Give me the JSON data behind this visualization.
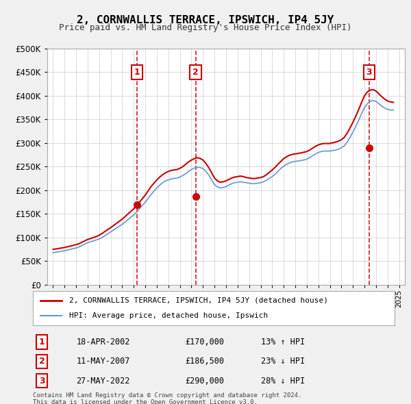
{
  "title": "2, CORNWALLIS TERRACE, IPSWICH, IP4 5JY",
  "subtitle": "Price paid vs. HM Land Registry's House Price Index (HPI)",
  "legend_line1": "2, CORNWALLIS TERRACE, IPSWICH, IP4 5JY (detached house)",
  "legend_line2": "HPI: Average price, detached house, Ipswich",
  "footer1": "Contains HM Land Registry data © Crown copyright and database right 2024.",
  "footer2": "This data is licensed under the Open Government Licence v3.0.",
  "transactions": [
    {
      "num": 1,
      "date": "18-APR-2002",
      "price": 170000,
      "pct": "13%",
      "dir": "↑",
      "x": 2002.29
    },
    {
      "num": 2,
      "date": "11-MAY-2007",
      "price": 186500,
      "pct": "23%",
      "dir": "↓",
      "x": 2007.36
    },
    {
      "num": 3,
      "date": "27-MAY-2022",
      "price": 290000,
      "pct": "28%",
      "dir": "↓",
      "x": 2022.41
    }
  ],
  "hpi_x": [
    1995,
    1995.25,
    1995.5,
    1995.75,
    1996,
    1996.25,
    1996.5,
    1996.75,
    1997,
    1997.25,
    1997.5,
    1997.75,
    1998,
    1998.25,
    1998.5,
    1998.75,
    1999,
    1999.25,
    1999.5,
    1999.75,
    2000,
    2000.25,
    2000.5,
    2000.75,
    2001,
    2001.25,
    2001.5,
    2001.75,
    2002,
    2002.25,
    2002.5,
    2002.75,
    2003,
    2003.25,
    2003.5,
    2003.75,
    2004,
    2004.25,
    2004.5,
    2004.75,
    2005,
    2005.25,
    2005.5,
    2005.75,
    2006,
    2006.25,
    2006.5,
    2006.75,
    2007,
    2007.25,
    2007.5,
    2007.75,
    2008,
    2008.25,
    2008.5,
    2008.75,
    2009,
    2009.25,
    2009.5,
    2009.75,
    2010,
    2010.25,
    2010.5,
    2010.75,
    2011,
    2011.25,
    2011.5,
    2011.75,
    2012,
    2012.25,
    2012.5,
    2012.75,
    2013,
    2013.25,
    2013.5,
    2013.75,
    2014,
    2014.25,
    2014.5,
    2014.75,
    2015,
    2015.25,
    2015.5,
    2015.75,
    2016,
    2016.25,
    2016.5,
    2016.75,
    2017,
    2017.25,
    2017.5,
    2017.75,
    2018,
    2018.25,
    2018.5,
    2018.75,
    2019,
    2019.25,
    2019.5,
    2019.75,
    2020,
    2020.25,
    2020.5,
    2020.75,
    2021,
    2021.25,
    2021.5,
    2021.75,
    2022,
    2022.25,
    2022.5,
    2022.75,
    2023,
    2023.25,
    2023.5,
    2023.75,
    2024,
    2024.25,
    2024.5
  ],
  "hpi_y": [
    68000,
    69000,
    70000,
    71000,
    72000,
    73500,
    75000,
    76500,
    78000,
    80000,
    83000,
    86000,
    89000,
    91000,
    93000,
    95000,
    97000,
    100000,
    104000,
    108000,
    112000,
    116000,
    120000,
    124000,
    128000,
    133000,
    138000,
    143000,
    148000,
    154000,
    161000,
    168000,
    175000,
    183000,
    191000,
    198000,
    205000,
    211000,
    216000,
    220000,
    222000,
    224000,
    225000,
    226000,
    228000,
    231000,
    235000,
    240000,
    244000,
    247000,
    249000,
    248000,
    246000,
    240000,
    232000,
    222000,
    212000,
    207000,
    205000,
    206000,
    208000,
    211000,
    214000,
    216000,
    217000,
    218000,
    217000,
    216000,
    215000,
    214000,
    214000,
    215000,
    216000,
    218000,
    221000,
    225000,
    229000,
    234000,
    240000,
    246000,
    251000,
    255000,
    258000,
    260000,
    261000,
    262000,
    263000,
    264000,
    266000,
    269000,
    273000,
    277000,
    280000,
    282000,
    283000,
    283000,
    283000,
    284000,
    285000,
    287000,
    290000,
    294000,
    302000,
    312000,
    323000,
    335000,
    348000,
    362000,
    375000,
    383000,
    388000,
    390000,
    388000,
    383000,
    378000,
    374000,
    371000,
    370000,
    370000
  ],
  "red_x": [
    1995,
    1995.25,
    1995.5,
    1995.75,
    1996,
    1996.25,
    1996.5,
    1996.75,
    1997,
    1997.25,
    1997.5,
    1997.75,
    1998,
    1998.25,
    1998.5,
    1998.75,
    1999,
    1999.25,
    1999.5,
    1999.75,
    2000,
    2000.25,
    2000.5,
    2000.75,
    2001,
    2001.25,
    2001.5,
    2001.75,
    2002,
    2002.25,
    2002.5,
    2002.75,
    2003,
    2003.25,
    2003.5,
    2003.75,
    2004,
    2004.25,
    2004.5,
    2004.75,
    2005,
    2005.25,
    2005.5,
    2005.75,
    2006,
    2006.25,
    2006.5,
    2006.75,
    2007,
    2007.25,
    2007.5,
    2007.75,
    2008,
    2008.25,
    2008.5,
    2008.75,
    2009,
    2009.25,
    2009.5,
    2009.75,
    2010,
    2010.25,
    2010.5,
    2010.75,
    2011,
    2011.25,
    2011.5,
    2011.75,
    2012,
    2012.25,
    2012.5,
    2012.75,
    2013,
    2013.25,
    2013.5,
    2013.75,
    2014,
    2014.25,
    2014.5,
    2014.75,
    2015,
    2015.25,
    2015.5,
    2015.75,
    2016,
    2016.25,
    2016.5,
    2016.75,
    2017,
    2017.25,
    2017.5,
    2017.75,
    2018,
    2018.25,
    2018.5,
    2018.75,
    2019,
    2019.25,
    2019.5,
    2019.75,
    2020,
    2020.25,
    2020.5,
    2020.75,
    2021,
    2021.25,
    2021.5,
    2021.75,
    2022,
    2022.25,
    2022.5,
    2022.75,
    2023,
    2023.25,
    2023.5,
    2023.75,
    2024,
    2024.25,
    2024.5
  ],
  "red_y": [
    75000,
    76000,
    77000,
    78000,
    79000,
    80500,
    82000,
    83500,
    85000,
    87000,
    90000,
    93000,
    96000,
    98000,
    100000,
    102000,
    105000,
    108500,
    113000,
    117000,
    121000,
    125500,
    130000,
    134500,
    139000,
    144500,
    150000,
    155500,
    161000,
    167500,
    175000,
    182500,
    190000,
    199000,
    208000,
    215000,
    222000,
    228000,
    233000,
    237000,
    240000,
    242000,
    243000,
    244000,
    246500,
    250000,
    255000,
    260000,
    264000,
    267000,
    269000,
    267500,
    264000,
    257000,
    248000,
    237000,
    226000,
    220000,
    217000,
    218000,
    220000,
    223000,
    226000,
    228000,
    229000,
    230000,
    229000,
    227000,
    226000,
    225000,
    225000,
    226000,
    227000,
    229000,
    233000,
    238000,
    243000,
    248500,
    255000,
    261000,
    267000,
    271000,
    274000,
    276000,
    277000,
    278000,
    279000,
    280500,
    282000,
    285000,
    289000,
    293000,
    296000,
    298000,
    299000,
    299000,
    299000,
    300500,
    302000,
    304000,
    307000,
    312000,
    321000,
    332000,
    344000,
    357000,
    371000,
    386000,
    400000,
    408000,
    412000,
    413000,
    410000,
    404000,
    398000,
    393000,
    389000,
    387000,
    386000
  ],
  "ylim": [
    0,
    500000
  ],
  "xlim": [
    1994.5,
    2025.5
  ],
  "bg_color": "#e8eef8",
  "plot_bg": "#ffffff",
  "red_color": "#cc0000",
  "blue_color": "#6699cc",
  "grid_color": "#cccccc",
  "vline_color": "#cc0000",
  "box_color": "#cc0000",
  "shade_color": "#dde8f5"
}
